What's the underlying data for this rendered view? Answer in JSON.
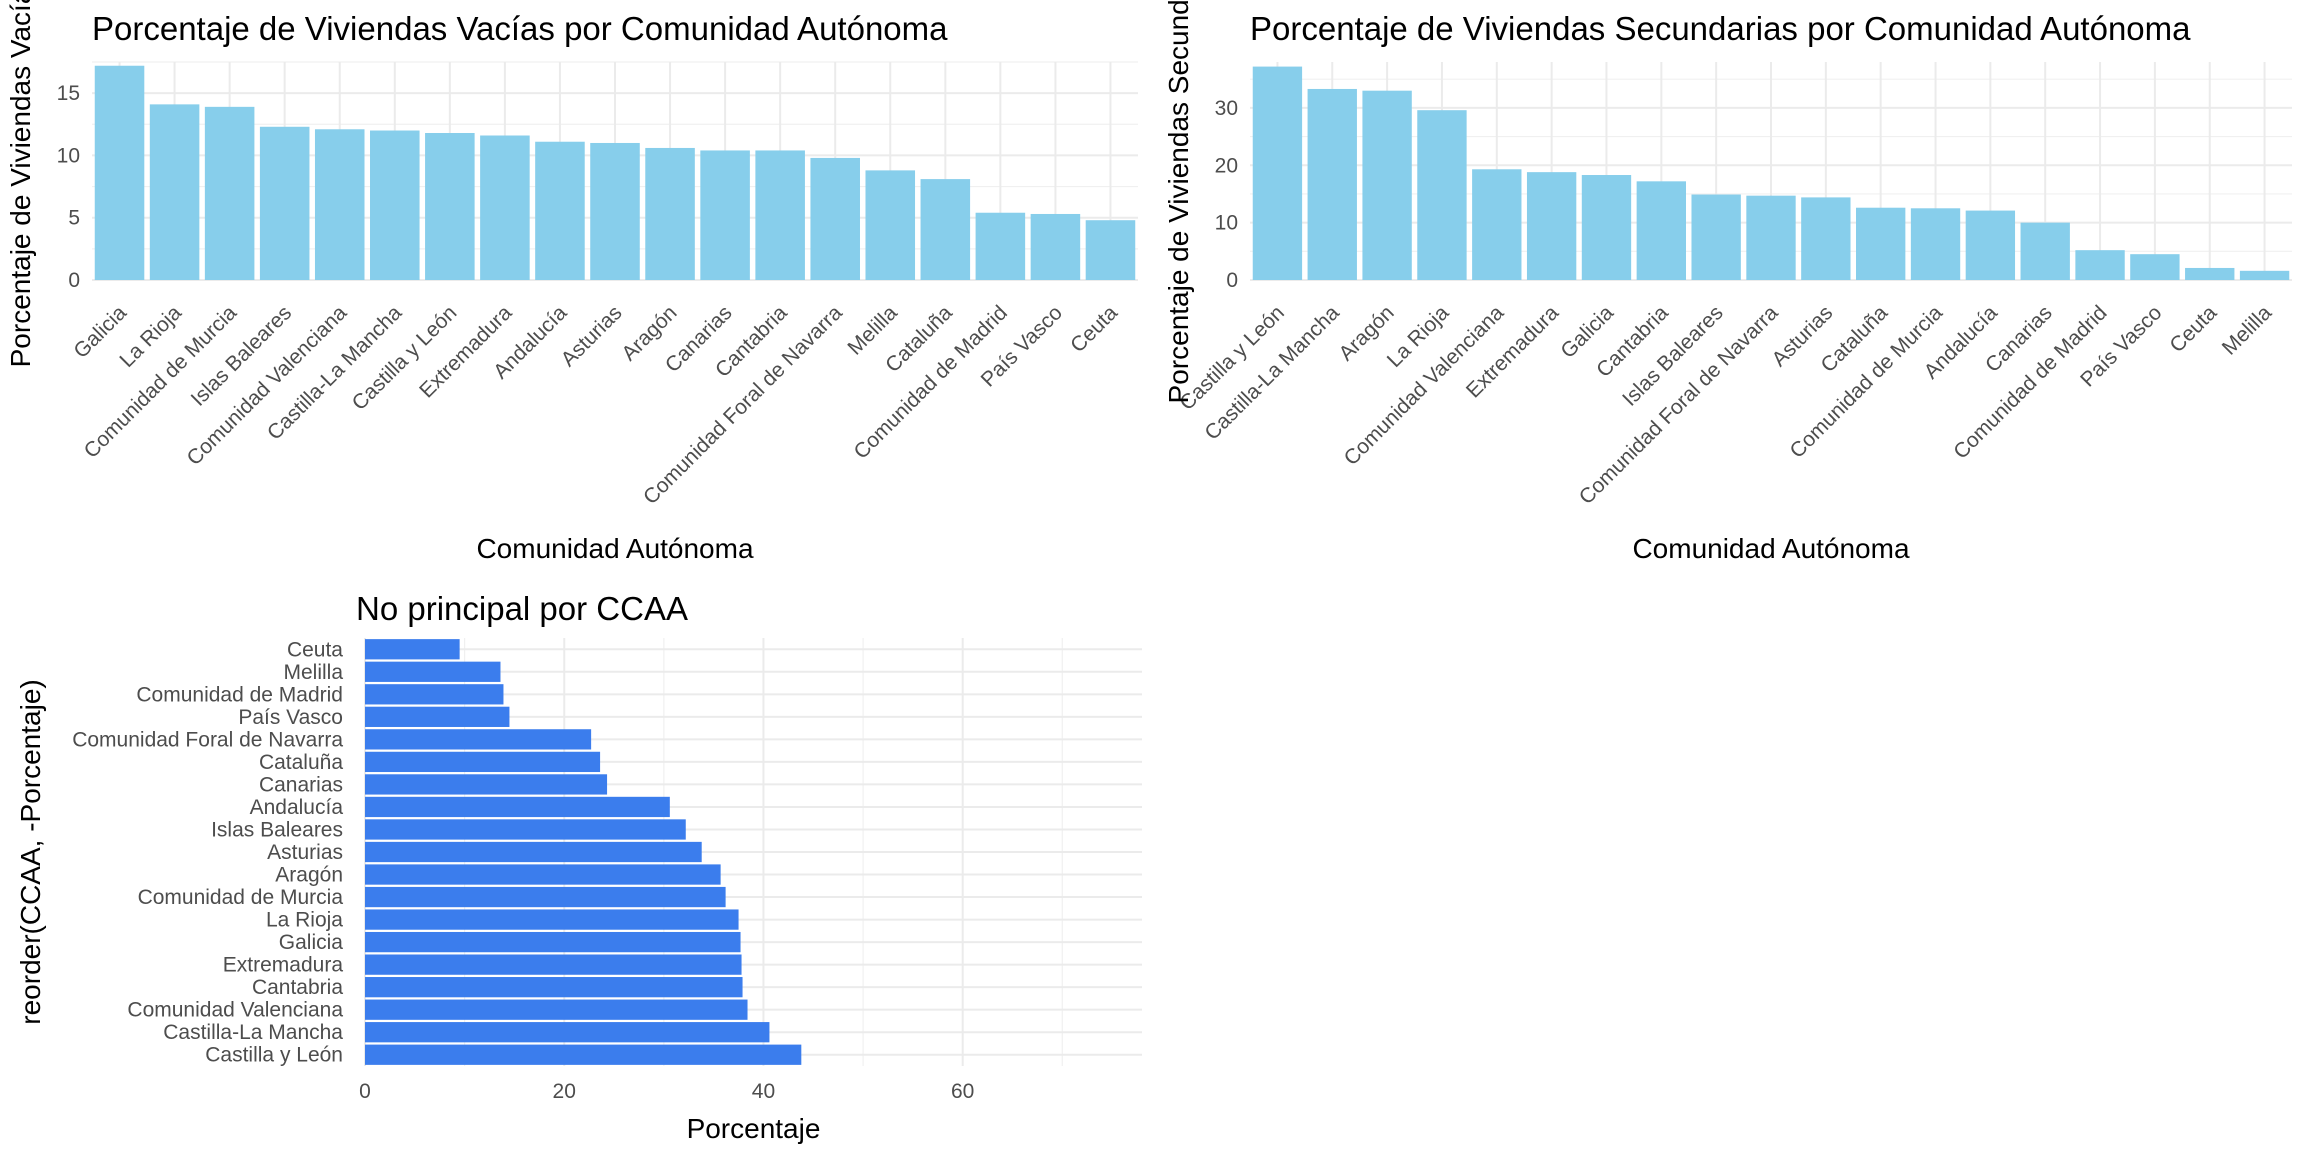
{
  "chart_data": [
    {
      "type": "bar",
      "title": "Porcentaje de Viviendas Vacías por Comunidad Autónoma",
      "xlabel": "Comunidad Autónoma",
      "ylabel": "Porcentaje de Viviendas Vacías",
      "categories": [
        "Galicia",
        "La Rioja",
        "Comunidad de Murcia",
        "Islas Baleares",
        "Comunidad Valenciana",
        "Castilla-La Mancha",
        "Castilla y León",
        "Extremadura",
        "Andalucía",
        "Asturias",
        "Aragón",
        "Canarias",
        "Cantabria",
        "Comunidad Foral de Navarra",
        "Melilla",
        "Cataluña",
        "Comunidad de Madrid",
        "País Vasco",
        "Ceuta"
      ],
      "values": [
        17.2,
        14.1,
        13.9,
        12.3,
        12.1,
        12.0,
        11.8,
        11.6,
        11.1,
        11.0,
        10.6,
        10.4,
        10.4,
        9.8,
        8.8,
        8.1,
        5.4,
        5.3,
        4.8
      ],
      "ylim": [
        0,
        17.5
      ],
      "yticks": [
        0,
        5,
        10,
        15
      ],
      "orientation": "vertical",
      "grid": true,
      "bar_color": "#87ceeb"
    },
    {
      "type": "bar",
      "title": "Porcentaje de Viviendas Secundarias por Comunidad Autónoma",
      "xlabel": "Comunidad Autónoma",
      "ylabel": "Porcentaje de Viviendas Secundarias",
      "categories": [
        "Castilla y León",
        "Castilla-La Mancha",
        "Aragón",
        "La Rioja",
        "Comunidad Valenciana",
        "Extremadura",
        "Galicia",
        "Cantabria",
        "Islas Baleares",
        "Comunidad Foral de Navarra",
        "Asturias",
        "Cataluña",
        "Comunidad de Murcia",
        "Andalucía",
        "Canarias",
        "Comunidad de Madrid",
        "País Vasco",
        "Ceuta",
        "Melilla"
      ],
      "values": [
        37.2,
        33.3,
        33.0,
        29.6,
        19.3,
        18.8,
        18.3,
        17.2,
        14.9,
        14.7,
        14.4,
        12.6,
        12.5,
        12.1,
        10.0,
        5.2,
        4.5,
        2.1,
        1.6
      ],
      "ylim": [
        0,
        38
      ],
      "yticks": [
        0,
        10,
        20,
        30
      ],
      "orientation": "vertical",
      "grid": true,
      "bar_color": "#87ceeb"
    },
    {
      "type": "bar",
      "title": "No principal por CCAA",
      "xlabel": "Porcentaje",
      "ylabel": "reorder(CCAA, -Porcentaje)",
      "categories": [
        "Castilla y León",
        "Castilla-La Mancha",
        "Comunidad Valenciana",
        "Cantabria",
        "Extremadura",
        "Galicia",
        "La Rioja",
        "Comunidad de Murcia",
        "Aragón",
        "Asturias",
        "Islas Baleares",
        "Andalucía",
        "Canarias",
        "Cataluña",
        "Comunidad Foral de Navarra",
        "País Vasco",
        "Comunidad de Madrid",
        "Melilla",
        "Ceuta"
      ],
      "values": [
        43.8,
        40.6,
        38.4,
        37.9,
        37.8,
        37.7,
        37.5,
        36.2,
        35.7,
        33.8,
        32.2,
        30.6,
        24.3,
        23.6,
        22.7,
        14.5,
        13.9,
        13.6,
        9.5
      ],
      "xlim": [
        0,
        78
      ],
      "xticks": [
        0,
        20,
        40,
        60
      ],
      "orientation": "horizontal",
      "grid": true,
      "bar_color": "#3b7ded"
    }
  ]
}
